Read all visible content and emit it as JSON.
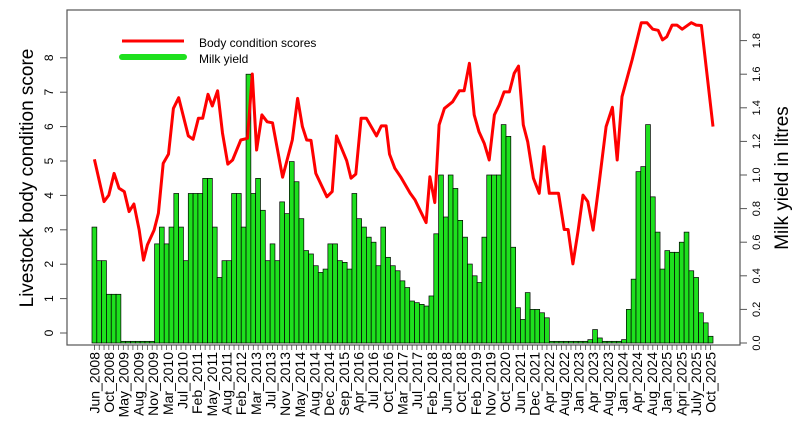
{
  "chart_data": {
    "type": "bar",
    "title": "",
    "xlabel": "",
    "ylabel_left": "Livestock body condition score",
    "ylabel_right": "Milk yield in litres",
    "ylim_left": [
      0,
      9
    ],
    "ylim_right": [
      0,
      1.95
    ],
    "yticks_left": [
      "0",
      "1",
      "2",
      "3",
      "4",
      "5",
      "6",
      "7",
      "8"
    ],
    "yticks_right": [
      "0.0",
      "0.2",
      "0.4",
      "0.6",
      "0.8",
      "1.0",
      "1.2",
      "1.4",
      "1.6",
      "1.8"
    ],
    "legend": {
      "placement": "top-left",
      "entries": [
        "Body condition scores",
        "Milk yield"
      ]
    },
    "colors": {
      "line": "#ff0000",
      "bars": "#1ee01e",
      "bar_edge": "#000000",
      "frame": "#555555"
    },
    "x_tick_labels": [
      "Jun_2008",
      "Oct_2008",
      "May_2009",
      "Aug_2009",
      "Nov_2009",
      "Mar_2010",
      "Jul_2010",
      "Feb_2011",
      "May_2011",
      "Aug_2011",
      "Feb_2012",
      "Mar_2013",
      "Jul_2013",
      "Nov_2013",
      "May_2014",
      "Aug_2014",
      "Dec_2014",
      "Sep_2015",
      "Apr_2016",
      "Jul_2016",
      "Oct_2016",
      "Mar_2017",
      "Jul_2017",
      "Feb_2018",
      "Jun_2018",
      "Oct_2018",
      "Feb_2019",
      "Nov_2019",
      "Oct_2020",
      "Jun_2021",
      "Dec_2021",
      "Apr_2022",
      "Aug_2022",
      "Jan_2023",
      "Apr_2023",
      "Aug_2023",
      "Jan_2024",
      "Apr_2024",
      "Aug_2024",
      "Jan_2025",
      "Apri_2025",
      "July_2025",
      "Oct_2025"
    ],
    "series": [
      {
        "name": "Milk yield",
        "type": "bar",
        "axis": "right",
        "values": [
          0.69,
          0.49,
          0.49,
          0.29,
          0.29,
          0.29,
          0.01,
          0.01,
          0.01,
          0.01,
          0.01,
          0.01,
          0.01,
          0.59,
          0.69,
          0.59,
          0.69,
          0.89,
          0.69,
          0.49,
          0.89,
          0.89,
          0.89,
          0.98,
          0.98,
          0.69,
          0.39,
          0.49,
          0.49,
          0.89,
          0.89,
          0.69,
          1.6,
          0.89,
          0.98,
          0.79,
          0.49,
          0.59,
          0.49,
          0.84,
          0.77,
          1.08,
          0.96,
          0.74,
          0.55,
          0.53,
          0.46,
          0.42,
          0.44,
          0.59,
          0.59,
          0.49,
          0.48,
          0.44,
          0.89,
          0.74,
          0.69,
          0.63,
          0.6,
          0.46,
          0.69,
          0.51,
          0.46,
          0.43,
          0.37,
          0.33,
          0.25,
          0.24,
          0.23,
          0.22,
          0.28,
          0.65,
          1.0,
          0.75,
          1.0,
          0.92,
          0.73,
          0.63,
          0.47,
          0.4,
          0.36,
          0.63,
          1.0,
          1.0,
          1.0,
          1.3,
          1.23,
          0.57,
          0.21,
          0.14,
          0.3,
          0.2,
          0.2,
          0.18,
          0.15,
          0.01,
          0.01,
          0.01,
          0.01,
          0.01,
          0.01,
          0.01,
          0.01,
          0.02,
          0.08,
          0.03,
          0.01,
          0.01,
          0.01,
          0.01,
          0.02,
          0.2,
          0.38,
          1.02,
          1.05,
          1.3,
          0.87,
          0.66,
          0.44,
          0.55,
          0.54,
          0.54,
          0.6,
          0.66,
          0.43,
          0.39,
          0.18,
          0.12,
          0.04
        ]
      },
      {
        "name": "Body condition scores",
        "type": "line",
        "axis": "left",
        "points": [
          [
            0,
            5.05
          ],
          [
            2,
            3.82
          ],
          [
            3,
            4.01
          ],
          [
            4.1,
            4.64
          ],
          [
            5.1,
            4.21
          ],
          [
            6.2,
            4.11
          ],
          [
            7.2,
            3.53
          ],
          [
            8.2,
            3.75
          ],
          [
            9.3,
            2.99
          ],
          [
            10.2,
            2.12
          ],
          [
            11,
            2.56
          ],
          [
            12.4,
            2.99
          ],
          [
            13.3,
            3.48
          ],
          [
            14.3,
            4.93
          ],
          [
            15.4,
            5.2
          ],
          [
            16.4,
            6.53
          ],
          [
            17.5,
            6.84
          ],
          [
            19.5,
            5.73
          ],
          [
            20.5,
            5.63
          ],
          [
            21.6,
            6.24
          ],
          [
            22.5,
            6.24
          ],
          [
            23.6,
            6.94
          ],
          [
            24.5,
            6.6
          ],
          [
            25.6,
            7.04
          ],
          [
            26.6,
            5.81
          ],
          [
            27.7,
            4.91
          ],
          [
            28.7,
            5.03
          ],
          [
            30.4,
            5.61
          ],
          [
            31.8,
            5.66
          ],
          [
            32.8,
            7.53
          ],
          [
            33.7,
            5.32
          ],
          [
            34.8,
            6.34
          ],
          [
            35.9,
            6.14
          ],
          [
            37,
            6.11
          ],
          [
            39.1,
            4.53
          ],
          [
            41.1,
            5.61
          ],
          [
            42.2,
            6.82
          ],
          [
            43.2,
            6.0
          ],
          [
            44.1,
            5.61
          ],
          [
            45,
            5.6
          ],
          [
            46,
            4.64
          ],
          [
            48.3,
            3.96
          ],
          [
            49.4,
            4.11
          ],
          [
            50.3,
            5.73
          ],
          [
            52.4,
            5.01
          ],
          [
            53.3,
            4.5
          ],
          [
            54.3,
            4.62
          ],
          [
            55.4,
            6.24
          ],
          [
            56.5,
            6.24
          ],
          [
            58.6,
            5.73
          ],
          [
            59.6,
            6.02
          ],
          [
            60.6,
            6.02
          ],
          [
            61.3,
            5.2
          ],
          [
            62.4,
            4.79
          ],
          [
            63.6,
            4.54
          ],
          [
            65.6,
            4.06
          ],
          [
            66.6,
            3.87
          ],
          [
            67.6,
            3.58
          ],
          [
            68.9,
            3.21
          ],
          [
            69.7,
            4.54
          ],
          [
            70.7,
            3.79
          ],
          [
            71.6,
            6.05
          ],
          [
            72.7,
            6.53
          ],
          [
            74.4,
            6.72
          ],
          [
            75.8,
            7.04
          ],
          [
            76.8,
            7.04
          ],
          [
            77.9,
            7.84
          ],
          [
            78.9,
            6.34
          ],
          [
            79.9,
            5.85
          ],
          [
            81,
            5.51
          ],
          [
            82,
            5.03
          ],
          [
            83.1,
            6.34
          ],
          [
            84.1,
            6.63
          ],
          [
            85.1,
            7.01
          ],
          [
            86.2,
            7.01
          ],
          [
            87.2,
            7.55
          ],
          [
            88.1,
            7.76
          ],
          [
            89.1,
            6.05
          ],
          [
            90,
            5.56
          ],
          [
            91.2,
            4.5
          ],
          [
            92.4,
            4.06
          ],
          [
            93.4,
            5.42
          ],
          [
            94.5,
            4.06
          ],
          [
            96.4,
            4.06
          ],
          [
            97.6,
            3.01
          ],
          [
            98.4,
            3.01
          ],
          [
            99.4,
            2.01
          ],
          [
            100.5,
            2.99
          ],
          [
            101.5,
            4.01
          ],
          [
            102.5,
            3.82
          ],
          [
            103.6,
            2.99
          ],
          [
            104.8,
            4.3
          ],
          [
            106.3,
            6.0
          ],
          [
            107.6,
            6.56
          ],
          [
            108.6,
            5.03
          ],
          [
            109.6,
            6.87
          ],
          [
            111.7,
            7.94
          ],
          [
            113.6,
            9.02
          ],
          [
            114.8,
            9.02
          ],
          [
            116,
            8.83
          ],
          [
            117.1,
            8.8
          ],
          [
            118,
            8.52
          ],
          [
            118.9,
            8.61
          ],
          [
            120,
            8.95
          ],
          [
            121,
            8.95
          ],
          [
            122.1,
            8.83
          ],
          [
            124,
            9.02
          ],
          [
            125,
            8.95
          ],
          [
            126.1,
            8.94
          ],
          [
            128.5,
            6.0
          ]
        ]
      }
    ]
  }
}
